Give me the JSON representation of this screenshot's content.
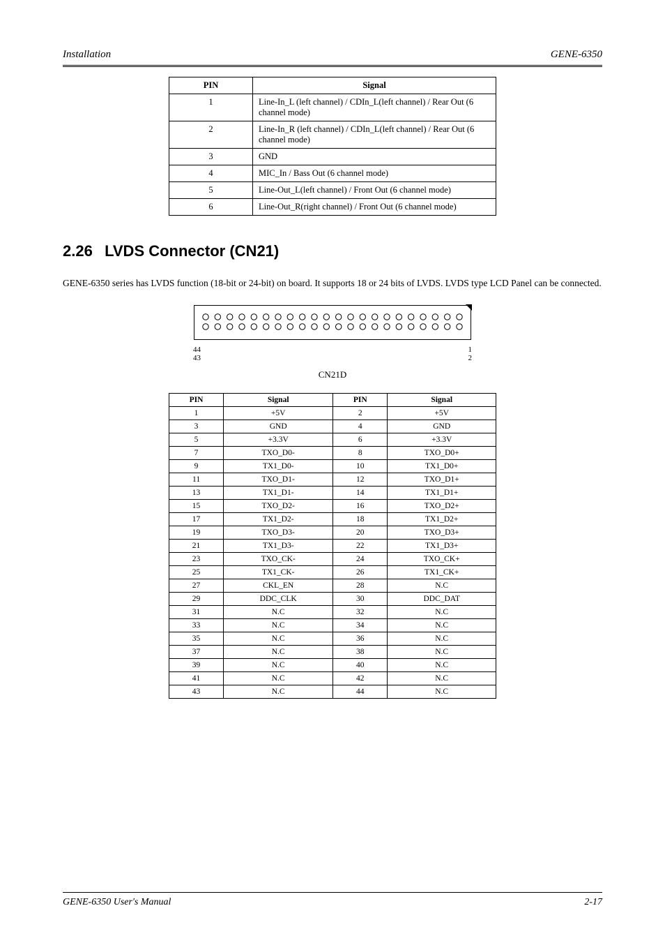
{
  "header": {
    "left": "Installation",
    "right": "GENE-6350"
  },
  "table1": {
    "columns": [
      "PIN",
      "Signal"
    ],
    "rows": [
      [
        "1",
        "Line-In_L (left channel) / CDIn_L(left channel) / Rear Out (6 channel mode)"
      ],
      [
        "2",
        "Line-In_R (left channel) / CDIn_L(left channel) / Rear Out (6 channel mode)"
      ],
      [
        "3",
        "GND"
      ],
      [
        "4",
        "MIC_In / Bass Out (6 channel mode)"
      ],
      [
        "5",
        "Line-Out_L(left channel) / Front Out (6 channel mode)"
      ],
      [
        "6",
        "Line-Out_R(right channel) / Front Out (6 channel mode)"
      ]
    ]
  },
  "section": {
    "number": "2.26",
    "title": "LVDS Connector (CN21)"
  },
  "body_text": "GENE-6350 series has LVDS function (18-bit or 24-bit) on board. It supports 18 or 24 bits of LVDS. LVDS type LCD Panel can be connected.",
  "connector": {
    "pins_per_row": 22,
    "rows": 2,
    "labels": {
      "top_left": "44",
      "top_right": "1",
      "bottom_left": "43",
      "bottom_right": "2"
    },
    "pin1_marker_color": "#000000",
    "circle_stroke": "#000000",
    "circle_fill": "#ffffff"
  },
  "caption": "CN21D",
  "table2": {
    "columns": [
      "PIN",
      "Signal",
      "PIN",
      "Signal"
    ],
    "rows": [
      [
        "1",
        "+5V",
        "2",
        "+5V"
      ],
      [
        "3",
        "GND",
        "4",
        "GND"
      ],
      [
        "5",
        "+3.3V",
        "6",
        "+3.3V"
      ],
      [
        "7",
        "TXO_D0-",
        "8",
        "TXO_D0+"
      ],
      [
        "9",
        "TX1_D0-",
        "10",
        "TX1_D0+"
      ],
      [
        "11",
        "TXO_D1-",
        "12",
        "TXO_D1+"
      ],
      [
        "13",
        "TX1_D1-",
        "14",
        "TX1_D1+"
      ],
      [
        "15",
        "TXO_D2-",
        "16",
        "TXO_D2+"
      ],
      [
        "17",
        "TX1_D2-",
        "18",
        "TX1_D2+"
      ],
      [
        "19",
        "TXO_D3-",
        "20",
        "TXO_D3+"
      ],
      [
        "21",
        "TX1_D3-",
        "22",
        "TX1_D3+"
      ],
      [
        "23",
        "TXO_CK-",
        "24",
        "TXO_CK+"
      ],
      [
        "25",
        "TX1_CK-",
        "26",
        "TX1_CK+"
      ],
      [
        "27",
        "CKL_EN",
        "28",
        "N.C"
      ],
      [
        "29",
        "DDC_CLK",
        "30",
        "DDC_DAT"
      ],
      [
        "31",
        "N.C",
        "32",
        "N.C"
      ],
      [
        "33",
        "N.C",
        "34",
        "N.C"
      ],
      [
        "35",
        "N.C",
        "36",
        "N.C"
      ],
      [
        "37",
        "N.C",
        "38",
        "N.C"
      ],
      [
        "39",
        "N.C",
        "40",
        "N.C"
      ],
      [
        "41",
        "N.C",
        "42",
        "N.C"
      ],
      [
        "43",
        "N.C",
        "44",
        "N.C"
      ]
    ]
  },
  "footer": {
    "left": "GENE-6350 User's Manual",
    "right": "2-17"
  }
}
